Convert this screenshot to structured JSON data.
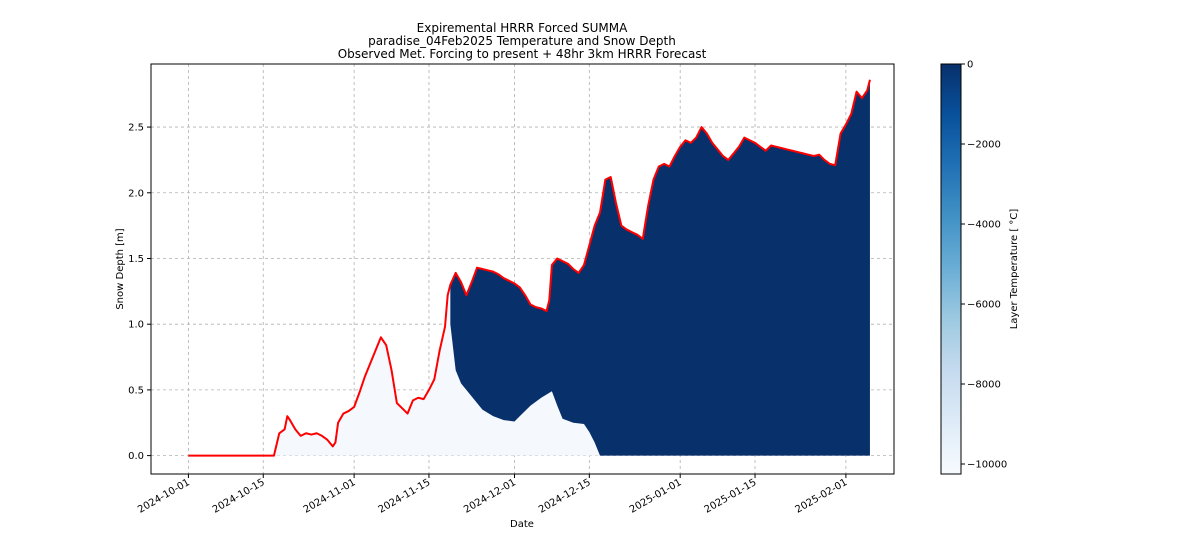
{
  "chart_data": {
    "type": "area",
    "title_lines": [
      "Expiremental HRRR Forced SUMMA",
      "paradise_04Feb2025 Temperature and Snow Depth",
      "Observed Met. Forcing to present + 48hr 3km HRRR Forecast"
    ],
    "xlabel": "Date",
    "ylabel": "Snow Depth [m]",
    "colorbar_label": "Layer Temperature [ $^\\circ$C]",
    "colorbar_label_display": "Layer Temperature [ °C]",
    "x_ticks": [
      "2024-10-01",
      "2024-10-15",
      "2024-11-01",
      "2024-11-15",
      "2024-12-01",
      "2024-12-15",
      "2025-01-01",
      "2025-01-15",
      "2025-02-01"
    ],
    "y_ticks": [
      "0.0",
      "0.5",
      "1.0",
      "1.5",
      "2.0",
      "2.5"
    ],
    "ylim": [
      -0.14,
      2.98
    ],
    "xlim": [
      "2024-09-24",
      "2025-02-10"
    ],
    "colorbar_ticks": [
      "0",
      "−2000",
      "−4000",
      "−6000",
      "−8000",
      "−10000"
    ],
    "colorbar_range": [
      -10250,
      0
    ],
    "grid": true,
    "line_color": "#ff0000",
    "fill_cold_color": "#08306b",
    "fill_light_color": "#f5f9fe",
    "snow_depth": [
      [
        "2024-10-01",
        0.0
      ],
      [
        "2024-10-17",
        0.0
      ],
      [
        "2024-10-18",
        0.17
      ],
      [
        "2024-10-19",
        0.2
      ],
      [
        "2024-10-19 12:00",
        0.3
      ],
      [
        "2024-10-20",
        0.27
      ],
      [
        "2024-10-21",
        0.2
      ],
      [
        "2024-10-22",
        0.15
      ],
      [
        "2024-10-23",
        0.17
      ],
      [
        "2024-10-24",
        0.16
      ],
      [
        "2024-10-25",
        0.17
      ],
      [
        "2024-10-26",
        0.15
      ],
      [
        "2024-10-27",
        0.12
      ],
      [
        "2024-10-28",
        0.07
      ],
      [
        "2024-10-28 12:00",
        0.1
      ],
      [
        "2024-10-29",
        0.25
      ],
      [
        "2024-10-30",
        0.32
      ],
      [
        "2024-10-31",
        0.34
      ],
      [
        "2024-11-01",
        0.37
      ],
      [
        "2024-11-02",
        0.48
      ],
      [
        "2024-11-03",
        0.6
      ],
      [
        "2024-11-04",
        0.7
      ],
      [
        "2024-11-05",
        0.8
      ],
      [
        "2024-11-06",
        0.9
      ],
      [
        "2024-11-07",
        0.84
      ],
      [
        "2024-11-08",
        0.65
      ],
      [
        "2024-11-09",
        0.4
      ],
      [
        "2024-11-10",
        0.36
      ],
      [
        "2024-11-11",
        0.32
      ],
      [
        "2024-11-12",
        0.42
      ],
      [
        "2024-11-13",
        0.44
      ],
      [
        "2024-11-14",
        0.43
      ],
      [
        "2024-11-15",
        0.5
      ],
      [
        "2024-11-16",
        0.58
      ],
      [
        "2024-11-17",
        0.8
      ],
      [
        "2024-11-18",
        0.98
      ],
      [
        "2024-11-18 12:00",
        1.22
      ],
      [
        "2024-11-19",
        1.3
      ],
      [
        "2024-11-20",
        1.39
      ],
      [
        "2024-11-21",
        1.32
      ],
      [
        "2024-11-22",
        1.22
      ],
      [
        "2024-11-23",
        1.32
      ],
      [
        "2024-11-24",
        1.43
      ],
      [
        "2024-11-25",
        1.42
      ],
      [
        "2024-11-26",
        1.41
      ],
      [
        "2024-11-27",
        1.4
      ],
      [
        "2024-11-28",
        1.38
      ],
      [
        "2024-11-29",
        1.35
      ],
      [
        "2024-11-30",
        1.33
      ],
      [
        "2024-12-01",
        1.31
      ],
      [
        "2024-12-02",
        1.28
      ],
      [
        "2024-12-03",
        1.22
      ],
      [
        "2024-12-04",
        1.15
      ],
      [
        "2024-12-05",
        1.13
      ],
      [
        "2024-12-06",
        1.12
      ],
      [
        "2024-12-07",
        1.1
      ],
      [
        "2024-12-07 12:00",
        1.18
      ],
      [
        "2024-12-08",
        1.45
      ],
      [
        "2024-12-09",
        1.5
      ],
      [
        "2024-12-10",
        1.48
      ],
      [
        "2024-12-11",
        1.46
      ],
      [
        "2024-12-12",
        1.42
      ],
      [
        "2024-12-13",
        1.39
      ],
      [
        "2024-12-14",
        1.45
      ],
      [
        "2024-12-15",
        1.6
      ],
      [
        "2024-12-16",
        1.75
      ],
      [
        "2024-12-17",
        1.85
      ],
      [
        "2024-12-18",
        2.1
      ],
      [
        "2024-12-19",
        2.12
      ],
      [
        "2024-12-20",
        1.92
      ],
      [
        "2024-12-21",
        1.75
      ],
      [
        "2024-12-22",
        1.72
      ],
      [
        "2024-12-23",
        1.7
      ],
      [
        "2024-12-24",
        1.68
      ],
      [
        "2024-12-25",
        1.65
      ],
      [
        "2024-12-26",
        1.9
      ],
      [
        "2024-12-27",
        2.1
      ],
      [
        "2024-12-28",
        2.2
      ],
      [
        "2024-12-29",
        2.22
      ],
      [
        "2024-12-30",
        2.2
      ],
      [
        "2024-12-31",
        2.28
      ],
      [
        "2025-01-01",
        2.35
      ],
      [
        "2025-01-02",
        2.4
      ],
      [
        "2025-01-03",
        2.38
      ],
      [
        "2025-01-04",
        2.42
      ],
      [
        "2025-01-05",
        2.5
      ],
      [
        "2025-01-06",
        2.45
      ],
      [
        "2025-01-07",
        2.38
      ],
      [
        "2025-01-08",
        2.33
      ],
      [
        "2025-01-09",
        2.28
      ],
      [
        "2025-01-10",
        2.25
      ],
      [
        "2025-01-11",
        2.3
      ],
      [
        "2025-01-12",
        2.35
      ],
      [
        "2025-01-13",
        2.42
      ],
      [
        "2025-01-14",
        2.4
      ],
      [
        "2025-01-15",
        2.38
      ],
      [
        "2025-01-16",
        2.35
      ],
      [
        "2025-01-17",
        2.32
      ],
      [
        "2025-01-18",
        2.36
      ],
      [
        "2025-01-19",
        2.35
      ],
      [
        "2025-01-20",
        2.34
      ],
      [
        "2025-01-21",
        2.33
      ],
      [
        "2025-01-22",
        2.32
      ],
      [
        "2025-01-23",
        2.31
      ],
      [
        "2025-01-24",
        2.3
      ],
      [
        "2025-01-25",
        2.29
      ],
      [
        "2025-01-26",
        2.28
      ],
      [
        "2025-01-27",
        2.29
      ],
      [
        "2025-01-28",
        2.25
      ],
      [
        "2025-01-29",
        2.22
      ],
      [
        "2025-01-30",
        2.21
      ],
      [
        "2025-01-31",
        2.45
      ],
      [
        "2025-02-01",
        2.52
      ],
      [
        "2025-02-02",
        2.6
      ],
      [
        "2025-02-03",
        2.77
      ],
      [
        "2025-02-04",
        2.72
      ],
      [
        "2025-02-05",
        2.78
      ],
      [
        "2025-02-05 12:00",
        2.86
      ]
    ],
    "cold_layer_base": [
      [
        "2024-11-19",
        1.0
      ],
      [
        "2024-11-20",
        0.65
      ],
      [
        "2024-11-21",
        0.55
      ],
      [
        "2024-11-23",
        0.45
      ],
      [
        "2024-11-25",
        0.35
      ],
      [
        "2024-11-27",
        0.3
      ],
      [
        "2024-11-29",
        0.27
      ],
      [
        "2024-12-01",
        0.26
      ],
      [
        "2024-12-02",
        0.3
      ],
      [
        "2024-12-04",
        0.38
      ],
      [
        "2024-12-06",
        0.44
      ],
      [
        "2024-12-08",
        0.49
      ],
      [
        "2024-12-09",
        0.38
      ],
      [
        "2024-12-10",
        0.28
      ],
      [
        "2024-12-12",
        0.25
      ],
      [
        "2024-12-14",
        0.24
      ],
      [
        "2024-12-15",
        0.18
      ],
      [
        "2024-12-16",
        0.1
      ],
      [
        "2024-12-17",
        0.0
      ],
      [
        "2025-02-05 12:00",
        0.0
      ]
    ]
  }
}
